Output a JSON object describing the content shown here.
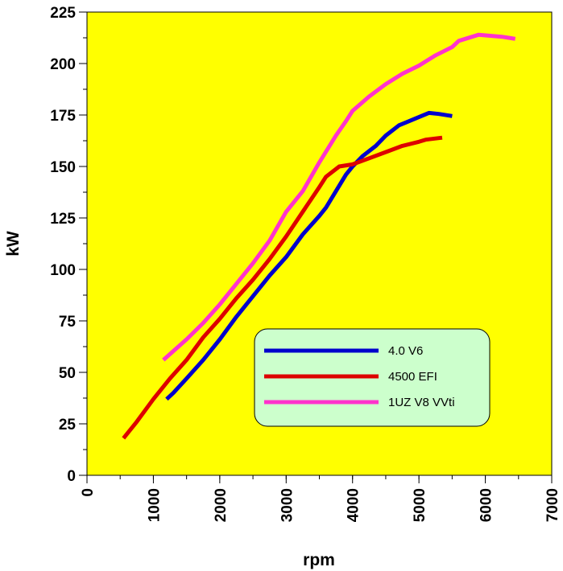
{
  "chart_data": {
    "type": "line",
    "xlabel": "rpm",
    "ylabel": "kW",
    "xlim": [
      0,
      7000
    ],
    "ylim": [
      0,
      225
    ],
    "x_ticks": [
      "0",
      "1000",
      "2000",
      "3000",
      "4000",
      "5000",
      "6000",
      "7000"
    ],
    "y_ticks": [
      "0",
      "25",
      "50",
      "75",
      "100",
      "125",
      "150",
      "175",
      "200",
      "225"
    ],
    "x_minor_step": 500,
    "y_minor_step": 12.5,
    "grid": false,
    "legend_position": "bottom-right",
    "plot_background": "#ffff00",
    "legend_background": "#ccffcc",
    "series": [
      {
        "name": "4.0 V6",
        "color": "#0000cc",
        "points": [
          [
            1200,
            37
          ],
          [
            1300,
            40
          ],
          [
            1500,
            47
          ],
          [
            1750,
            56
          ],
          [
            2000,
            66
          ],
          [
            2250,
            77
          ],
          [
            2500,
            87
          ],
          [
            2750,
            97
          ],
          [
            3000,
            106
          ],
          [
            3250,
            117
          ],
          [
            3500,
            126
          ],
          [
            3600,
            130
          ],
          [
            3750,
            138
          ],
          [
            3900,
            146
          ],
          [
            4000,
            150
          ],
          [
            4150,
            155
          ],
          [
            4350,
            160
          ],
          [
            4500,
            165
          ],
          [
            4700,
            170
          ],
          [
            4850,
            172
          ],
          [
            5000,
            174
          ],
          [
            5150,
            176
          ],
          [
            5300,
            175.5
          ],
          [
            5500,
            174.5
          ]
        ]
      },
      {
        "name": "4500 EFI",
        "color": "#dd0000",
        "points": [
          [
            550,
            18
          ],
          [
            750,
            26
          ],
          [
            1000,
            37
          ],
          [
            1250,
            47
          ],
          [
            1500,
            56
          ],
          [
            1750,
            67
          ],
          [
            2000,
            76
          ],
          [
            2250,
            86
          ],
          [
            2500,
            95
          ],
          [
            2750,
            105
          ],
          [
            3000,
            116
          ],
          [
            3250,
            128
          ],
          [
            3500,
            140
          ],
          [
            3600,
            145
          ],
          [
            3800,
            150
          ],
          [
            4000,
            151
          ],
          [
            4250,
            154
          ],
          [
            4500,
            157
          ],
          [
            4750,
            160
          ],
          [
            5000,
            162
          ],
          [
            5100,
            163
          ],
          [
            5350,
            164
          ]
        ]
      },
      {
        "name": "1UZ V8 VVti",
        "color": "#ff33cc",
        "points": [
          [
            1150,
            56
          ],
          [
            1500,
            66
          ],
          [
            1750,
            74
          ],
          [
            2000,
            83
          ],
          [
            2250,
            93
          ],
          [
            2500,
            103
          ],
          [
            2750,
            114
          ],
          [
            3000,
            128
          ],
          [
            3250,
            138
          ],
          [
            3500,
            152
          ],
          [
            3750,
            165
          ],
          [
            3900,
            172
          ],
          [
            4000,
            177
          ],
          [
            4250,
            184
          ],
          [
            4500,
            190
          ],
          [
            4750,
            195
          ],
          [
            5000,
            199
          ],
          [
            5250,
            204
          ],
          [
            5500,
            208
          ],
          [
            5600,
            211
          ],
          [
            5900,
            214
          ],
          [
            6250,
            213
          ],
          [
            6450,
            212
          ]
        ]
      }
    ]
  }
}
